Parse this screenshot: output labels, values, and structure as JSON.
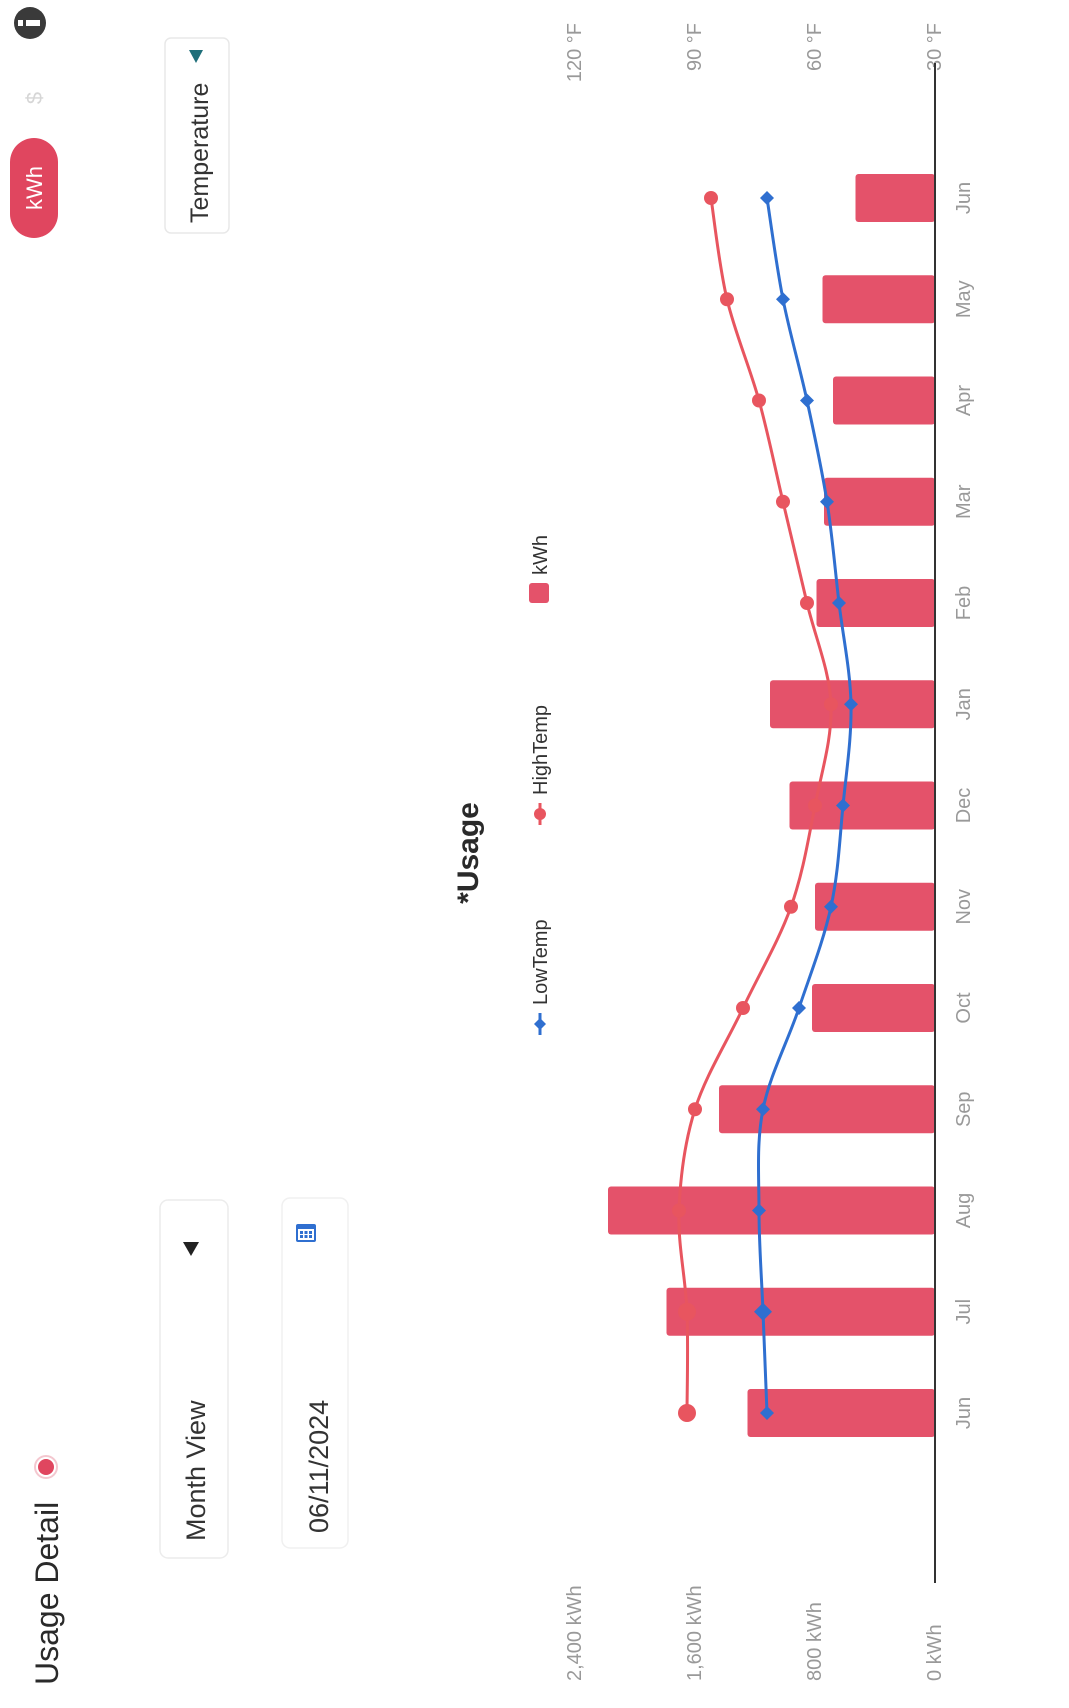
{
  "header": {
    "title": "Usage Detail",
    "status_dot_color": "#e0465f",
    "info_icon": "info-icon"
  },
  "toggle": {
    "active_label": "kWh",
    "inactive_label": "$"
  },
  "controls": {
    "view_select_value": "Month View",
    "date_value": "06/11/2024",
    "calendar_icon": "calendar-icon",
    "overlay_select_value": "Temperature",
    "dropdown_icon": "triangle-down-icon"
  },
  "colors": {
    "bar": "#e4526a",
    "high_temp": "#e8555f",
    "low_temp": "#2f6fd0",
    "accent": "#e0465f",
    "axis_text": "#999999",
    "teal_caret": "#1f6f7a"
  },
  "chart_data": {
    "type": "bar",
    "title": "*Usage",
    "categories": [
      "Jun",
      "Jul",
      "Aug",
      "Sep",
      "Oct",
      "Nov",
      "Dec",
      "Jan",
      "Feb",
      "Mar",
      "Apr",
      "May",
      "Jun"
    ],
    "series": [
      {
        "name": "kWh",
        "type": "bar",
        "axis": "left",
        "values": [
          1250,
          1790,
          2180,
          1440,
          820,
          800,
          970,
          1100,
          790,
          740,
          680,
          750,
          530
        ]
      },
      {
        "name": "HighTemp",
        "type": "line",
        "axis": "right",
        "values": [
          92,
          92,
          94,
          90,
          78,
          66,
          60,
          56,
          62,
          68,
          74,
          82,
          86
        ]
      },
      {
        "name": "LowTemp",
        "type": "line",
        "axis": "right",
        "values": [
          72,
          73,
          74,
          73,
          64,
          56,
          53,
          51,
          54,
          57,
          62,
          68,
          72
        ]
      }
    ],
    "y_left": {
      "ticks": [
        "0 kWh",
        "800 kWh",
        "1,600 kWh",
        "2,400 kWh"
      ],
      "min": 0,
      "max": 2400
    },
    "y_right": {
      "ticks": [
        "30 °F",
        "60 °F",
        "90 °F",
        "120 °F"
      ],
      "min": 30,
      "max": 120
    },
    "legend": [
      "LowTemp",
      "HighTemp",
      "kWh"
    ],
    "legend_position": "top"
  }
}
